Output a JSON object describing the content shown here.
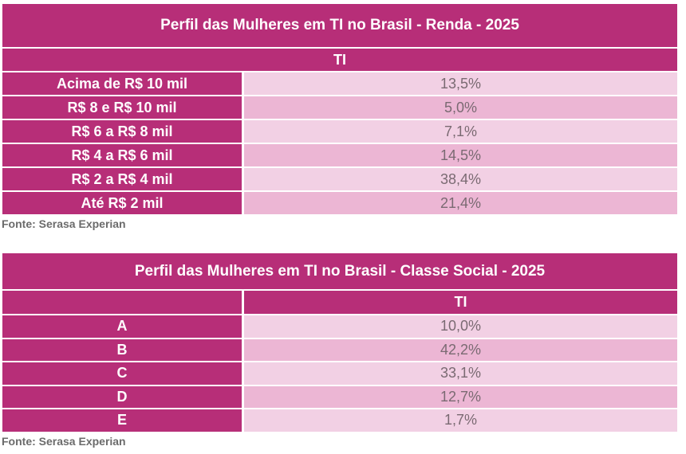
{
  "table1": {
    "title": "Perfil das Mulheres em TI no Brasil - Renda - 2025",
    "header": "TI",
    "rows": [
      {
        "label": "Acima de R$ 10 mil",
        "value": "13,5%"
      },
      {
        "label": "R$ 8 e R$ 10 mil",
        "value": "5,0%"
      },
      {
        "label": "R$ 6 a R$ 8 mil",
        "value": "7,1%"
      },
      {
        "label": "R$ 4 a R$ 6 mil",
        "value": "14,5%"
      },
      {
        "label": "R$ 2 a R$ 4 mil",
        "value": "38,4%"
      },
      {
        "label": "Até R$ 2 mil",
        "value": "21,4%"
      }
    ],
    "source": "Fonte: Serasa Experian"
  },
  "table2": {
    "title": "Perfil das Mulheres em TI no Brasil - Classe Social - 2025",
    "header": "TI",
    "rows": [
      {
        "label": "A",
        "value": "10,0%"
      },
      {
        "label": "B",
        "value": "42,2%"
      },
      {
        "label": "C",
        "value": "33,1%"
      },
      {
        "label": "D",
        "value": "12,7%"
      },
      {
        "label": "E",
        "value": "1,7%"
      }
    ],
    "source": "Fonte: Serasa Experian"
  }
}
